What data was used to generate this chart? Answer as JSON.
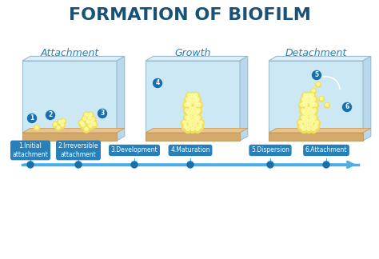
{
  "title": "FORMATION OF BIOFILM",
  "title_color": "#1a5276",
  "title_fontsize": 16,
  "background_color": "#ffffff",
  "stage_labels": [
    "Attachment",
    "Growth",
    "Detachment"
  ],
  "stage_label_color": "#2980b9",
  "stage_label_fontsize": 9,
  "box_bg_color": "#cce8f4",
  "box_border_color": "#aaccdd",
  "floor_color": "#d4a96a",
  "floor_top_color": "#e8c48a",
  "timeline_color": "#4aaee8",
  "dot_color": "#1a6faa",
  "step_labels": [
    "1.Initial\nattachment",
    "2.Irreversible\nattachment",
    "3.Development",
    "4.Maturation",
    "5.Dispersion",
    "6.Attachment"
  ],
  "step_box_color": "#2980b9",
  "step_text_color": "#ffffff",
  "step_number_bg": "#1a6faa",
  "number_labels": [
    "1",
    "2",
    "3",
    "4",
    "5",
    "6"
  ],
  "cell_color_outer": "#f0e060",
  "cell_color_inner": "#ffffaa",
  "biofilm_color": "#e8d84a"
}
